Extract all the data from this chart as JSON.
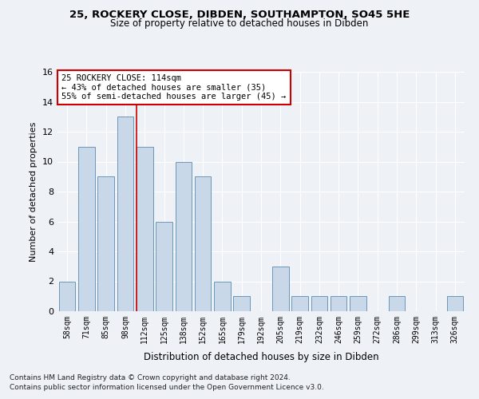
{
  "title_line1": "25, ROCKERY CLOSE, DIBDEN, SOUTHAMPTON, SO45 5HE",
  "title_line2": "Size of property relative to detached houses in Dibden",
  "xlabel": "Distribution of detached houses by size in Dibden",
  "ylabel": "Number of detached properties",
  "categories": [
    "58sqm",
    "71sqm",
    "85sqm",
    "98sqm",
    "112sqm",
    "125sqm",
    "138sqm",
    "152sqm",
    "165sqm",
    "179sqm",
    "192sqm",
    "205sqm",
    "219sqm",
    "232sqm",
    "246sqm",
    "259sqm",
    "272sqm",
    "286sqm",
    "299sqm",
    "313sqm",
    "326sqm"
  ],
  "values": [
    2,
    11,
    9,
    13,
    11,
    6,
    10,
    9,
    2,
    1,
    0,
    3,
    1,
    1,
    1,
    1,
    0,
    1,
    0,
    0,
    1
  ],
  "bar_color": "#c8d8e8",
  "bar_edge_color": "#5a8ab0",
  "annotation_line1": "25 ROCKERY CLOSE: 114sqm",
  "annotation_line2": "← 43% of detached houses are smaller (35)",
  "annotation_line3": "55% of semi-detached houses are larger (45) →",
  "vline_color": "#cc0000",
  "vline_index": 4,
  "annotation_box_facecolor": "#ffffff",
  "annotation_box_edgecolor": "#cc0000",
  "ylim": [
    0,
    16
  ],
  "yticks": [
    0,
    2,
    4,
    6,
    8,
    10,
    12,
    14,
    16
  ],
  "footnote_line1": "Contains HM Land Registry data © Crown copyright and database right 2024.",
  "footnote_line2": "Contains public sector information licensed under the Open Government Licence v3.0.",
  "background_color": "#eef2f7",
  "grid_color": "#ffffff"
}
